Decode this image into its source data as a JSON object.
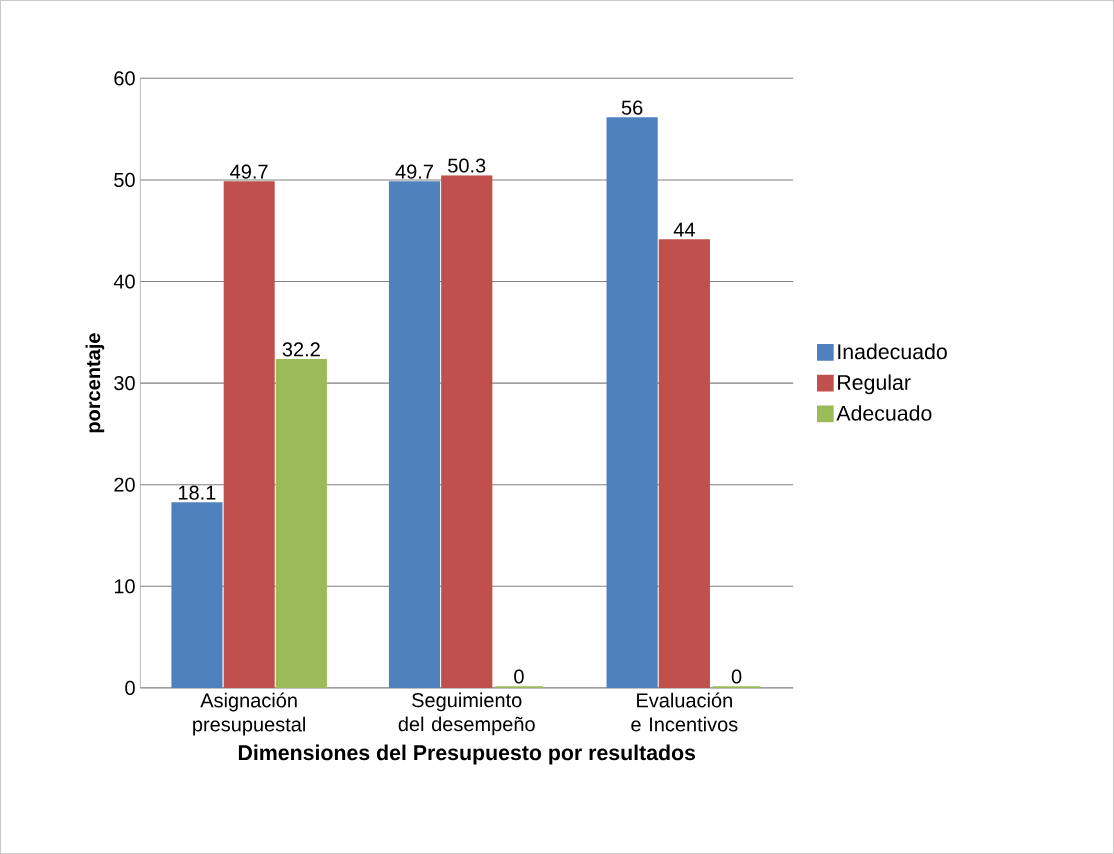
{
  "chart_data": {
    "type": "bar",
    "categories": [
      "Asignación presupuestal",
      "Seguimiento del desempeño",
      "Evaluación e Incentivos"
    ],
    "series": [
      {
        "name": "Inadecuado",
        "color": "#4f81bd",
        "values": [
          18.1,
          49.7,
          56
        ]
      },
      {
        "name": "Regular",
        "color": "#c0504d",
        "values": [
          49.7,
          50.3,
          44
        ]
      },
      {
        "name": "Adecuado",
        "color": "#9bbb59",
        "values": [
          32.2,
          0,
          0
        ]
      }
    ],
    "xlabel": "Dimensiones del Presupuesto por resultados",
    "ylabel": "porcentaje",
    "ylim": [
      0,
      60
    ],
    "yticks": [
      0,
      10,
      20,
      30,
      40,
      50,
      60
    ],
    "grid": "y",
    "legend": "right",
    "data_labels": true
  }
}
